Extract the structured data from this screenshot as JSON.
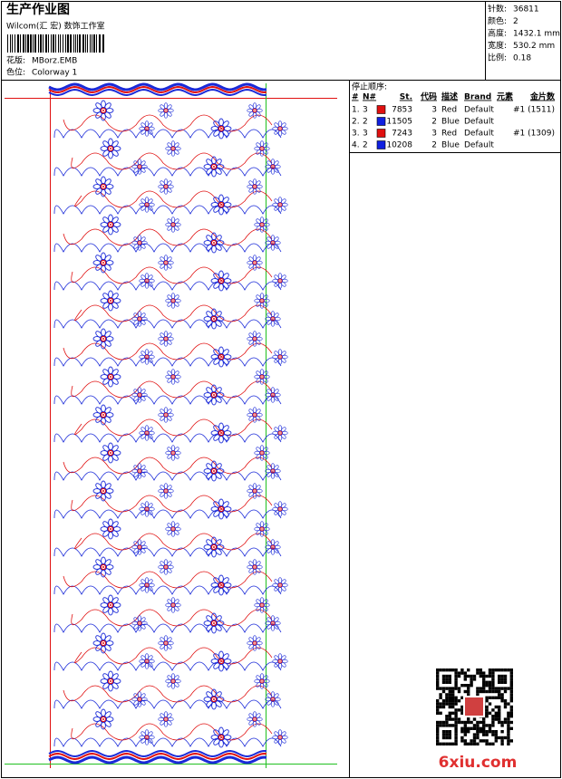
{
  "header": {
    "title": "生产作业图",
    "studio": "Wilcom(汇 宏) 数饰工作室",
    "design_label": "花版:",
    "design": "MBorz.EMB",
    "colorway_label": "色位:",
    "colorway": "Colorway 1"
  },
  "info": [
    {
      "label": "针数:",
      "value": "36811"
    },
    {
      "label": "颜色:",
      "value": "2"
    },
    {
      "label": "高度:",
      "value": "1432.1 mm"
    },
    {
      "label": "宽度:",
      "value": "530.2 mm"
    },
    {
      "label": "比例:",
      "value": "0.18"
    }
  ],
  "stop_sequence": {
    "title": "停止顺序:",
    "columns": [
      "#",
      "N#",
      "St.",
      "代码",
      "描述",
      "Brand",
      "元素",
      "金片数"
    ],
    "rows": [
      {
        "index": "1.",
        "needle": "3",
        "swatch": "#e01010",
        "stitches": "7853",
        "code": "3",
        "description": "Red",
        "brand": "Default",
        "sequins": "#1 (1511)"
      },
      {
        "index": "2.",
        "needle": "2",
        "swatch": "#1020e0",
        "stitches": "11505",
        "code": "2",
        "description": "Blue",
        "brand": "Default"
      },
      {
        "index": "3.",
        "needle": "3",
        "swatch": "#e01010",
        "stitches": "7243",
        "code": "3",
        "description": "Red",
        "brand": "Default",
        "sequins": "#1 (1309)"
      },
      {
        "index": "4.",
        "needle": "2",
        "swatch": "#1020e0",
        "stitches": "10208",
        "code": "2",
        "description": "Blue",
        "brand": "Default"
      }
    ]
  },
  "watermark": "6xiu.com"
}
